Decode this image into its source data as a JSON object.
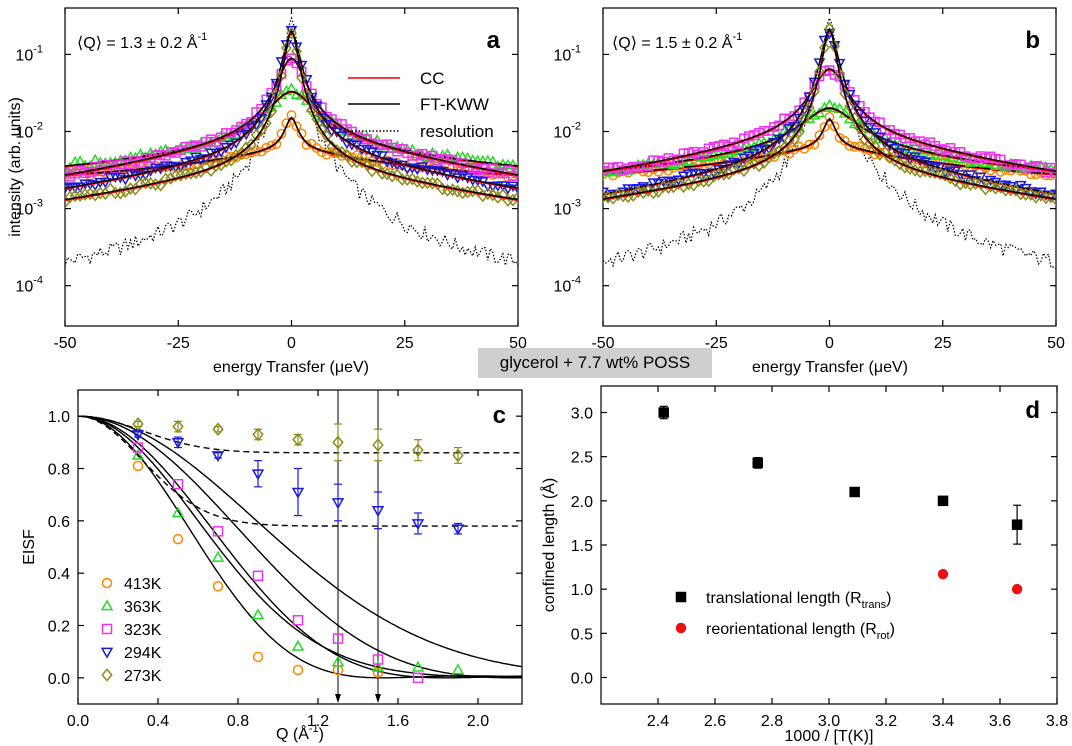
{
  "panel_a": {
    "letter": "a",
    "q_label": "⟨Q⟩ = 1.3 ± 0.2 Å",
    "q_label_sup": "-1"
  },
  "panel_b": {
    "letter": "b",
    "q_label": "⟨Q⟩ = 1.5 ± 0.2 Å",
    "q_label_sup": "-1"
  },
  "panel_c": {
    "letter": "c"
  },
  "panel_d": {
    "letter": "d"
  },
  "center_caption": "glycerol + 7.7 wt% POSS",
  "colors": {
    "413K": "#ff8800",
    "363K": "#22dd22",
    "323K": "#ee33ee",
    "294K": "#1a1adf",
    "273K": "#8b8b1a",
    "CC": "#ee0000",
    "fit": "#000000",
    "d_trans": "#000000",
    "d_rot": "#ee1111"
  },
  "chart_data": [
    {
      "id": "a",
      "type": "scatter",
      "xlabel": "energy Transfer (μeV)",
      "ylabel": "intensity (arb. units)",
      "xlim": [
        -50,
        50
      ],
      "ylim": [
        3e-05,
        0.4
      ],
      "yscale": "log",
      "xticks": [
        "-50",
        "-25",
        "0",
        "25",
        "50"
      ],
      "xtick_values": [
        -50,
        -25,
        0,
        25,
        50
      ],
      "yticks": [
        "10",
        "10",
        "10",
        "10"
      ],
      "ytick_exps": [
        "-4",
        "-3",
        "-2",
        "-1"
      ],
      "ytick_values": [
        0.0001,
        0.001,
        0.01,
        0.1
      ],
      "legend": [
        "CC",
        "FT-KWW",
        "resolution"
      ],
      "series": [
        {
          "key": "413K",
          "marker": "circle",
          "peak": 0.009,
          "gamma": 1.5,
          "base": 0.0022,
          "slope": 0.00016,
          "width": 25
        },
        {
          "key": "363K",
          "marker": "triangle",
          "peak": 0.025,
          "gamma": 5,
          "base": 0.0022,
          "slope": 0.0002,
          "width": 30
        },
        {
          "key": "323K",
          "marker": "square",
          "peak": 0.08,
          "gamma": 2.8,
          "base": 0.0009,
          "slope": 0.00028,
          "width": 30
        },
        {
          "key": "294K",
          "marker": "triangle-down",
          "peak": 0.19,
          "gamma": 1.7,
          "base": 0.00045,
          "slope": 0.00014,
          "width": 35
        },
        {
          "key": "273K",
          "marker": "diamond",
          "peak": 0.2,
          "gamma": 1.3,
          "base": 0.00026,
          "slope": 8e-05,
          "width": 40
        }
      ],
      "resolution": {
        "peak": 0.3,
        "gamma": 1.1,
        "base": 6e-05
      }
    },
    {
      "id": "b",
      "type": "scatter",
      "xlabel": "energy Transfer (μeV)",
      "ylabel": "",
      "xlim": [
        -50,
        50
      ],
      "ylim": [
        3e-05,
        0.4
      ],
      "yscale": "log",
      "xticks": [
        "-50",
        "-25",
        "0",
        "25",
        "50"
      ],
      "xtick_values": [
        -50,
        -25,
        0,
        25,
        50
      ],
      "yticks": [
        "10",
        "10",
        "10",
        "10"
      ],
      "ytick_exps": [
        "-4",
        "-3",
        "-2",
        "-1"
      ],
      "ytick_values": [
        0.0001,
        0.001,
        0.01,
        0.1
      ],
      "series": [
        {
          "key": "413K",
          "marker": "circle",
          "peak": 0.008,
          "gamma": 1.4,
          "base": 0.0022,
          "slope": 0.00018,
          "width": 25
        },
        {
          "key": "363K",
          "marker": "triangle",
          "peak": 0.013,
          "gamma": 6,
          "base": 0.0019,
          "slope": 0.00018,
          "width": 30
        },
        {
          "key": "323K",
          "marker": "square",
          "peak": 0.055,
          "gamma": 3.5,
          "base": 0.0011,
          "slope": 0.0003,
          "width": 30
        },
        {
          "key": "294K",
          "marker": "triangle-down",
          "peak": 0.2,
          "gamma": 1.7,
          "base": 0.0003,
          "slope": 0.00012,
          "width": 35
        },
        {
          "key": "273K",
          "marker": "diamond",
          "peak": 0.21,
          "gamma": 1.3,
          "base": 0.00028,
          "slope": 8e-05,
          "width": 40
        }
      ],
      "resolution": {
        "peak": 0.3,
        "gamma": 1.1,
        "base": 6e-05
      }
    },
    {
      "id": "c",
      "type": "scatter",
      "xlabel": "Q (Å",
      "xlabel_sup": "-1",
      "xlabel_end": ")",
      "ylabel": "EISF",
      "xlim": [
        0,
        2.22
      ],
      "ylim": [
        -0.1,
        1.1
      ],
      "xticks": [
        "0.0",
        "0.4",
        "0.8",
        "1.2",
        "1.6",
        "2.0"
      ],
      "xtick_values": [
        0,
        0.4,
        0.8,
        1.2,
        1.6,
        2.0
      ],
      "yticks": [
        "0.0",
        "0.2",
        "0.4",
        "0.6",
        "0.8",
        "1.0"
      ],
      "ytick_values": [
        0,
        0.2,
        0.4,
        0.6,
        0.8,
        1.0
      ],
      "arrows_at": [
        1.3,
        1.5
      ],
      "series": [
        {
          "key": "413K",
          "name": "413K",
          "marker": "circle",
          "x": [
            0.3,
            0.5,
            0.7,
            0.9,
            1.1,
            1.3,
            1.5
          ],
          "y": [
            0.81,
            0.53,
            0.35,
            0.08,
            0.03,
            0.03,
            0.02
          ]
        },
        {
          "key": "363K",
          "name": "363K",
          "marker": "triangle",
          "x": [
            0.3,
            0.5,
            0.7,
            0.9,
            1.1,
            1.3,
            1.5,
            1.7,
            1.9
          ],
          "y": [
            0.85,
            0.63,
            0.46,
            0.24,
            0.12,
            0.06,
            0.04,
            0.04,
            0.03
          ]
        },
        {
          "key": "323K",
          "name": "323K",
          "marker": "square",
          "x": [
            0.3,
            0.5,
            0.7,
            0.9,
            1.1,
            1.3,
            1.5,
            1.7
          ],
          "y": [
            0.88,
            0.74,
            0.56,
            0.39,
            0.22,
            0.15,
            0.07,
            0.0
          ]
        },
        {
          "key": "294K",
          "name": "294K",
          "marker": "triangle-down",
          "x": [
            0.3,
            0.5,
            0.7,
            0.9,
            1.1,
            1.3,
            1.5,
            1.7,
            1.9
          ],
          "y": [
            0.93,
            0.9,
            0.85,
            0.78,
            0.71,
            0.67,
            0.64,
            0.59,
            0.57
          ],
          "err": [
            0.01,
            0.02,
            0.01,
            0.05,
            0.09,
            0.07,
            0.07,
            0.04,
            0.02
          ]
        },
        {
          "key": "273K",
          "name": "273K",
          "marker": "diamond",
          "x": [
            0.3,
            0.5,
            0.7,
            0.9,
            1.1,
            1.3,
            1.5,
            1.7,
            1.9
          ],
          "y": [
            0.97,
            0.96,
            0.95,
            0.93,
            0.91,
            0.9,
            0.89,
            0.87,
            0.85
          ],
          "err": [
            0.01,
            0.02,
            0.01,
            0.02,
            0.02,
            0.07,
            0.06,
            0.04,
            0.03
          ]
        }
      ],
      "fit_curves": [
        {
          "kind": "sphere",
          "R": 2.95,
          "p": 0
        },
        {
          "kind": "sphere",
          "R": 2.45,
          "p": 0
        },
        {
          "kind": "sphere",
          "R": 2.05,
          "p": 0
        },
        {
          "kind": "gauss",
          "s": 0.84,
          "p": 0
        },
        {
          "kind": "gauss",
          "s": 1.25,
          "p": 0
        },
        {
          "kind": "gauss",
          "s": 0.45,
          "p": 0.58,
          "dashed": true
        },
        {
          "kind": "gauss",
          "s": 0.45,
          "p": 0.86,
          "dashed": true
        }
      ]
    },
    {
      "id": "d",
      "type": "scatter",
      "xlabel": "1000 / [T(K)]",
      "ylabel": "confined length (Å)",
      "xlim": [
        2.2,
        3.8
      ],
      "ylim": [
        -0.3,
        3.3
      ],
      "xticks": [
        "2.4",
        "2.6",
        "2.8",
        "3.0",
        "3.2",
        "3.4",
        "3.6",
        "3.8"
      ],
      "xtick_values": [
        2.4,
        2.6,
        2.8,
        3.0,
        3.2,
        3.4,
        3.6,
        3.8
      ],
      "yticks": [
        "0.0",
        "0.5",
        "1.0",
        "1.5",
        "2.0",
        "2.5",
        "3.0"
      ],
      "ytick_values": [
        0,
        0.5,
        1.0,
        1.5,
        2.0,
        2.5,
        3.0
      ],
      "series": [
        {
          "key": "d_trans",
          "name": "translational length (R",
          "sub": "trans",
          "name_end": ")",
          "marker": "square",
          "x": [
            2.42,
            2.75,
            3.09,
            3.4,
            3.66
          ],
          "y": [
            3.0,
            2.43,
            2.1,
            2.0,
            1.73
          ],
          "err": [
            0.07,
            0.06,
            0.04,
            0.03,
            0.22
          ]
        },
        {
          "key": "d_rot",
          "name": "reorientational length (R",
          "sub": "rot",
          "name_end": ")",
          "marker": "dot",
          "x": [
            3.4,
            3.66
          ],
          "y": [
            1.17,
            1.0
          ]
        }
      ]
    }
  ]
}
